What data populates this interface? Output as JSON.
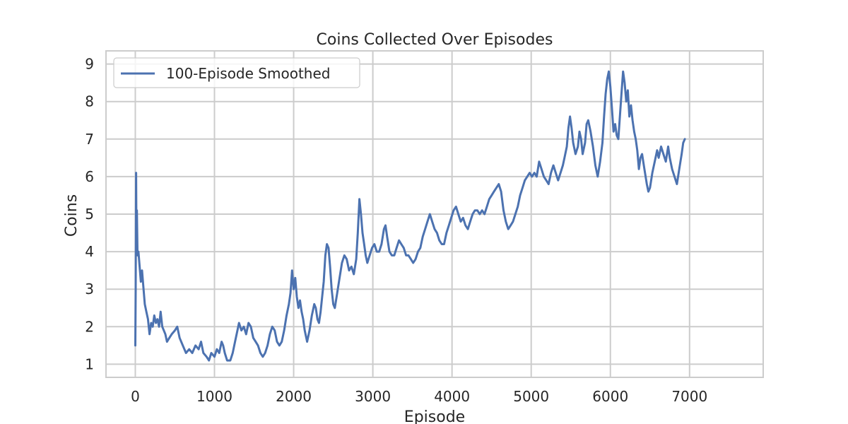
{
  "chart_data": {
    "type": "line",
    "title": "Coins Collected Over Episodes",
    "xlabel": "Episode",
    "ylabel": "Coins",
    "xlim": [
      -370,
      7930
    ],
    "ylim": [
      0.65,
      9.35
    ],
    "xticks": [
      0,
      1000,
      2000,
      3000,
      4000,
      5000,
      6000,
      7000
    ],
    "yticks": [
      1,
      2,
      3,
      4,
      5,
      6,
      7,
      8,
      9
    ],
    "grid": true,
    "legend": {
      "placement": "top-left",
      "entries": [
        "100-Episode Smoothed"
      ]
    },
    "colors": {
      "series": "#4c72b0",
      "grid": "#cccccc",
      "spine": "#cccccc",
      "text": "#262626"
    },
    "series": [
      {
        "name": "100-Episode Smoothed",
        "points": [
          [
            0,
            1.5
          ],
          [
            5,
            3.0
          ],
          [
            10,
            6.1
          ],
          [
            15,
            4.2
          ],
          [
            20,
            5.1
          ],
          [
            28,
            3.9
          ],
          [
            40,
            4.0
          ],
          [
            55,
            3.6
          ],
          [
            70,
            3.2
          ],
          [
            85,
            3.5
          ],
          [
            100,
            3.1
          ],
          [
            120,
            2.6
          ],
          [
            140,
            2.4
          ],
          [
            160,
            2.2
          ],
          [
            180,
            1.8
          ],
          [
            200,
            2.1
          ],
          [
            220,
            2.0
          ],
          [
            240,
            2.3
          ],
          [
            260,
            2.1
          ],
          [
            280,
            2.2
          ],
          [
            300,
            2.0
          ],
          [
            320,
            2.4
          ],
          [
            340,
            2.0
          ],
          [
            360,
            1.9
          ],
          [
            380,
            1.8
          ],
          [
            400,
            1.6
          ],
          [
            430,
            1.7
          ],
          [
            460,
            1.8
          ],
          [
            500,
            1.9
          ],
          [
            530,
            2.0
          ],
          [
            560,
            1.7
          ],
          [
            600,
            1.5
          ],
          [
            640,
            1.3
          ],
          [
            680,
            1.4
          ],
          [
            720,
            1.3
          ],
          [
            760,
            1.5
          ],
          [
            800,
            1.4
          ],
          [
            830,
            1.6
          ],
          [
            860,
            1.3
          ],
          [
            900,
            1.2
          ],
          [
            930,
            1.1
          ],
          [
            960,
            1.3
          ],
          [
            1000,
            1.2
          ],
          [
            1030,
            1.4
          ],
          [
            1060,
            1.3
          ],
          [
            1090,
            1.6
          ],
          [
            1110,
            1.5
          ],
          [
            1130,
            1.3
          ],
          [
            1160,
            1.1
          ],
          [
            1200,
            1.1
          ],
          [
            1230,
            1.3
          ],
          [
            1260,
            1.6
          ],
          [
            1290,
            1.9
          ],
          [
            1310,
            2.1
          ],
          [
            1340,
            1.9
          ],
          [
            1370,
            2.0
          ],
          [
            1400,
            1.8
          ],
          [
            1430,
            2.1
          ],
          [
            1460,
            2.0
          ],
          [
            1490,
            1.7
          ],
          [
            1520,
            1.6
          ],
          [
            1550,
            1.5
          ],
          [
            1580,
            1.3
          ],
          [
            1610,
            1.2
          ],
          [
            1640,
            1.3
          ],
          [
            1670,
            1.5
          ],
          [
            1700,
            1.8
          ],
          [
            1730,
            2.0
          ],
          [
            1760,
            1.9
          ],
          [
            1790,
            1.6
          ],
          [
            1820,
            1.5
          ],
          [
            1850,
            1.6
          ],
          [
            1880,
            1.9
          ],
          [
            1910,
            2.3
          ],
          [
            1940,
            2.6
          ],
          [
            1960,
            2.9
          ],
          [
            1980,
            3.5
          ],
          [
            2000,
            3.0
          ],
          [
            2020,
            3.3
          ],
          [
            2040,
            2.8
          ],
          [
            2060,
            2.5
          ],
          [
            2080,
            2.7
          ],
          [
            2100,
            2.4
          ],
          [
            2120,
            2.2
          ],
          [
            2140,
            1.9
          ],
          [
            2170,
            1.6
          ],
          [
            2200,
            1.9
          ],
          [
            2230,
            2.3
          ],
          [
            2260,
            2.6
          ],
          [
            2280,
            2.5
          ],
          [
            2300,
            2.2
          ],
          [
            2320,
            2.1
          ],
          [
            2340,
            2.4
          ],
          [
            2360,
            2.8
          ],
          [
            2380,
            3.2
          ],
          [
            2400,
            3.9
          ],
          [
            2420,
            4.2
          ],
          [
            2440,
            4.1
          ],
          [
            2460,
            3.6
          ],
          [
            2480,
            3.0
          ],
          [
            2500,
            2.6
          ],
          [
            2520,
            2.5
          ],
          [
            2550,
            2.9
          ],
          [
            2580,
            3.3
          ],
          [
            2610,
            3.7
          ],
          [
            2640,
            3.9
          ],
          [
            2670,
            3.8
          ],
          [
            2700,
            3.5
          ],
          [
            2730,
            3.6
          ],
          [
            2760,
            3.4
          ],
          [
            2790,
            3.8
          ],
          [
            2810,
            4.5
          ],
          [
            2830,
            5.4
          ],
          [
            2850,
            5.0
          ],
          [
            2870,
            4.5
          ],
          [
            2890,
            4.2
          ],
          [
            2910,
            3.9
          ],
          [
            2930,
            3.7
          ],
          [
            2960,
            3.9
          ],
          [
            2990,
            4.1
          ],
          [
            3020,
            4.2
          ],
          [
            3050,
            4.0
          ],
          [
            3080,
            4.0
          ],
          [
            3110,
            4.2
          ],
          [
            3140,
            4.6
          ],
          [
            3160,
            4.7
          ],
          [
            3180,
            4.4
          ],
          [
            3210,
            4.0
          ],
          [
            3240,
            3.9
          ],
          [
            3270,
            3.9
          ],
          [
            3300,
            4.1
          ],
          [
            3330,
            4.3
          ],
          [
            3360,
            4.2
          ],
          [
            3390,
            4.1
          ],
          [
            3420,
            3.9
          ],
          [
            3450,
            3.9
          ],
          [
            3480,
            3.8
          ],
          [
            3510,
            3.7
          ],
          [
            3540,
            3.8
          ],
          [
            3570,
            4.0
          ],
          [
            3600,
            4.1
          ],
          [
            3630,
            4.4
          ],
          [
            3660,
            4.6
          ],
          [
            3690,
            4.8
          ],
          [
            3720,
            5.0
          ],
          [
            3750,
            4.8
          ],
          [
            3780,
            4.6
          ],
          [
            3810,
            4.5
          ],
          [
            3840,
            4.3
          ],
          [
            3870,
            4.2
          ],
          [
            3900,
            4.2
          ],
          [
            3930,
            4.5
          ],
          [
            3960,
            4.7
          ],
          [
            3990,
            4.9
          ],
          [
            4020,
            5.1
          ],
          [
            4050,
            5.2
          ],
          [
            4080,
            5.0
          ],
          [
            4110,
            4.8
          ],
          [
            4140,
            4.9
          ],
          [
            4170,
            4.7
          ],
          [
            4200,
            4.6
          ],
          [
            4230,
            4.8
          ],
          [
            4260,
            5.0
          ],
          [
            4290,
            5.1
          ],
          [
            4320,
            5.1
          ],
          [
            4350,
            5.0
          ],
          [
            4380,
            5.1
          ],
          [
            4410,
            5.0
          ],
          [
            4440,
            5.2
          ],
          [
            4470,
            5.4
          ],
          [
            4500,
            5.5
          ],
          [
            4530,
            5.6
          ],
          [
            4560,
            5.7
          ],
          [
            4590,
            5.8
          ],
          [
            4620,
            5.6
          ],
          [
            4650,
            5.1
          ],
          [
            4680,
            4.8
          ],
          [
            4710,
            4.6
          ],
          [
            4740,
            4.7
          ],
          [
            4770,
            4.8
          ],
          [
            4800,
            5.0
          ],
          [
            4830,
            5.2
          ],
          [
            4860,
            5.5
          ],
          [
            4890,
            5.7
          ],
          [
            4920,
            5.9
          ],
          [
            4950,
            6.0
          ],
          [
            4980,
            6.1
          ],
          [
            5010,
            6.0
          ],
          [
            5040,
            6.1
          ],
          [
            5070,
            6.0
          ],
          [
            5100,
            6.4
          ],
          [
            5130,
            6.2
          ],
          [
            5160,
            6.0
          ],
          [
            5190,
            5.9
          ],
          [
            5220,
            5.8
          ],
          [
            5250,
            6.1
          ],
          [
            5280,
            6.3
          ],
          [
            5310,
            6.1
          ],
          [
            5340,
            5.9
          ],
          [
            5370,
            6.1
          ],
          [
            5400,
            6.3
          ],
          [
            5420,
            6.5
          ],
          [
            5450,
            6.8
          ],
          [
            5470,
            7.3
          ],
          [
            5490,
            7.6
          ],
          [
            5510,
            7.3
          ],
          [
            5530,
            6.9
          ],
          [
            5560,
            6.6
          ],
          [
            5590,
            6.8
          ],
          [
            5610,
            7.2
          ],
          [
            5630,
            7.0
          ],
          [
            5650,
            6.6
          ],
          [
            5680,
            6.9
          ],
          [
            5700,
            7.4
          ],
          [
            5720,
            7.5
          ],
          [
            5750,
            7.2
          ],
          [
            5780,
            6.8
          ],
          [
            5810,
            6.3
          ],
          [
            5840,
            6.0
          ],
          [
            5870,
            6.4
          ],
          [
            5900,
            6.9
          ],
          [
            5920,
            7.6
          ],
          [
            5940,
            8.2
          ],
          [
            5960,
            8.6
          ],
          [
            5980,
            8.8
          ],
          [
            6000,
            8.4
          ],
          [
            6020,
            7.8
          ],
          [
            6040,
            7.2
          ],
          [
            6060,
            7.4
          ],
          [
            6080,
            7.1
          ],
          [
            6100,
            7.0
          ],
          [
            6120,
            7.6
          ],
          [
            6140,
            8.2
          ],
          [
            6160,
            8.8
          ],
          [
            6180,
            8.5
          ],
          [
            6200,
            8.0
          ],
          [
            6220,
            8.3
          ],
          [
            6240,
            7.6
          ],
          [
            6260,
            7.9
          ],
          [
            6280,
            7.5
          ],
          [
            6300,
            7.2
          ],
          [
            6320,
            7.0
          ],
          [
            6340,
            6.7
          ],
          [
            6360,
            6.2
          ],
          [
            6380,
            6.5
          ],
          [
            6400,
            6.6
          ],
          [
            6430,
            6.2
          ],
          [
            6460,
            5.8
          ],
          [
            6480,
            5.6
          ],
          [
            6500,
            5.7
          ],
          [
            6530,
            6.1
          ],
          [
            6560,
            6.4
          ],
          [
            6590,
            6.7
          ],
          [
            6610,
            6.5
          ],
          [
            6640,
            6.8
          ],
          [
            6670,
            6.6
          ],
          [
            6700,
            6.4
          ],
          [
            6730,
            6.8
          ],
          [
            6750,
            6.5
          ],
          [
            6780,
            6.2
          ],
          [
            6810,
            6.0
          ],
          [
            6840,
            5.8
          ],
          [
            6870,
            6.2
          ],
          [
            6900,
            6.6
          ],
          [
            6920,
            6.9
          ],
          [
            6940,
            7.0
          ]
        ]
      }
    ]
  }
}
